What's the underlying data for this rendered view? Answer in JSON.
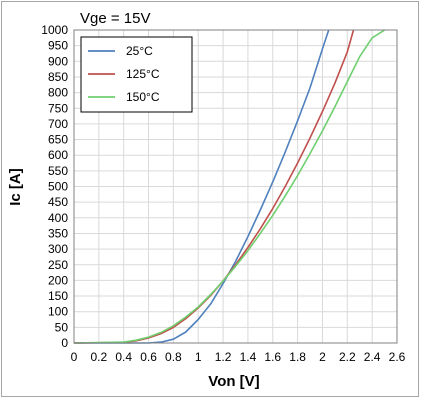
{
  "chart_data": {
    "type": "line",
    "title": "Vge = 15V",
    "xlabel": "Von [V]",
    "ylabel": "Ic [A]",
    "xlim": [
      0,
      2.6
    ],
    "ylim": [
      0,
      1000
    ],
    "x_ticks": [
      "0",
      "0.2",
      "0.4",
      "0.6",
      "0.8",
      "1",
      "1.2",
      "1.4",
      "1.6",
      "1.8",
      "2",
      "2.2",
      "2.4",
      "2.6"
    ],
    "y_ticks": [
      "0",
      "50",
      "100",
      "150",
      "200",
      "250",
      "300",
      "350",
      "400",
      "450",
      "500",
      "550",
      "600",
      "650",
      "700",
      "750",
      "800",
      "850",
      "900",
      "950",
      "1000"
    ],
    "grid": true,
    "legend_position": "top-left",
    "series": [
      {
        "name": "25°C",
        "color": "#4f81bd",
        "x": [
          0,
          0.4,
          0.6,
          0.7,
          0.8,
          0.9,
          1.0,
          1.1,
          1.2,
          1.3,
          1.4,
          1.5,
          1.6,
          1.7,
          1.8,
          1.9,
          2.0,
          2.05
        ],
        "y": [
          0,
          0,
          0,
          3,
          12,
          35,
          75,
          125,
          190,
          260,
          340,
          425,
          515,
          610,
          710,
          815,
          940,
          1000
        ]
      },
      {
        "name": "125°C",
        "color": "#c0504d",
        "x": [
          0,
          0.4,
          0.5,
          0.6,
          0.7,
          0.8,
          0.9,
          1.0,
          1.1,
          1.2,
          1.3,
          1.4,
          1.5,
          1.6,
          1.7,
          1.8,
          1.9,
          2.0,
          2.1,
          2.2,
          2.25
        ],
        "y": [
          0,
          2,
          7,
          16,
          30,
          50,
          78,
          112,
          152,
          198,
          250,
          305,
          365,
          430,
          500,
          575,
          655,
          740,
          830,
          930,
          1000
        ]
      },
      {
        "name": "150°C",
        "color": "#6fcf6f",
        "x": [
          0,
          0.4,
          0.5,
          0.6,
          0.7,
          0.8,
          0.9,
          1.0,
          1.1,
          1.2,
          1.3,
          1.4,
          1.5,
          1.6,
          1.7,
          1.8,
          1.9,
          2.0,
          2.1,
          2.2,
          2.3,
          2.4,
          2.5
        ],
        "y": [
          0,
          3,
          9,
          19,
          34,
          55,
          83,
          115,
          155,
          198,
          245,
          295,
          350,
          408,
          470,
          535,
          605,
          678,
          755,
          835,
          915,
          975,
          1000
        ]
      }
    ]
  }
}
